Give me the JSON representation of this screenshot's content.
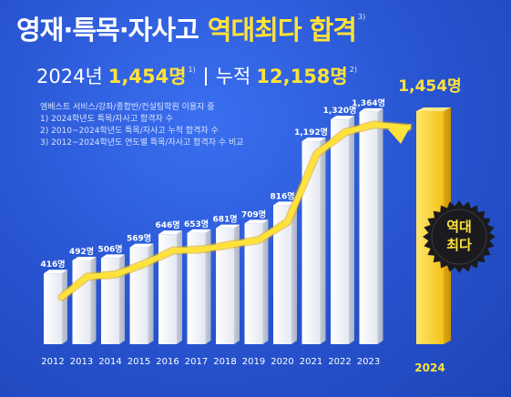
{
  "header": {
    "title_main": "영재·특목·자사고",
    "title_highlight": "역대최다 합격",
    "title_note": "3)"
  },
  "summary": {
    "year_label": "2024년",
    "year_count": "1,454명",
    "year_note": "1)",
    "cumulative_label": "누적",
    "cumulative_count": "12,158명",
    "cumulative_note": "2)"
  },
  "notes": [
    "엠베스트 서비스/강좌/종합반/컨설팅학원 이용자 중",
    "1) 2024학년도 특목/자사고 합격자 수",
    "2) 2010~2024학년도 특목/자사고 누적 합격자 수",
    "3) 2012~2024학년도 연도별 특목/자사고 합격자 수 비교"
  ],
  "badge": {
    "line1": "역대",
    "line2": "최다"
  },
  "colors": {
    "background": "#2a5bd7",
    "highlight": "#ffe23a",
    "bar": "#f2f4f8",
    "gold_bar": "#f1c21b",
    "arrow": "#ffe23a"
  },
  "chart_data": {
    "type": "bar",
    "categories": [
      "2012",
      "2013",
      "2014",
      "2015",
      "2016",
      "2017",
      "2018",
      "2019",
      "2020",
      "2021",
      "2022",
      "2023",
      "2024"
    ],
    "values": [
      416,
      492,
      506,
      569,
      646,
      653,
      681,
      709,
      816,
      1192,
      1320,
      1364,
      1454
    ],
    "value_labels": [
      "416명",
      "492명",
      "506명",
      "569명",
      "646명",
      "653명",
      "681명",
      "709명",
      "816명",
      "1,192명",
      "1,320명",
      "1,364명",
      "1,454명"
    ],
    "highlight_category": "2024",
    "trend_arrow": true,
    "unit": "명"
  }
}
